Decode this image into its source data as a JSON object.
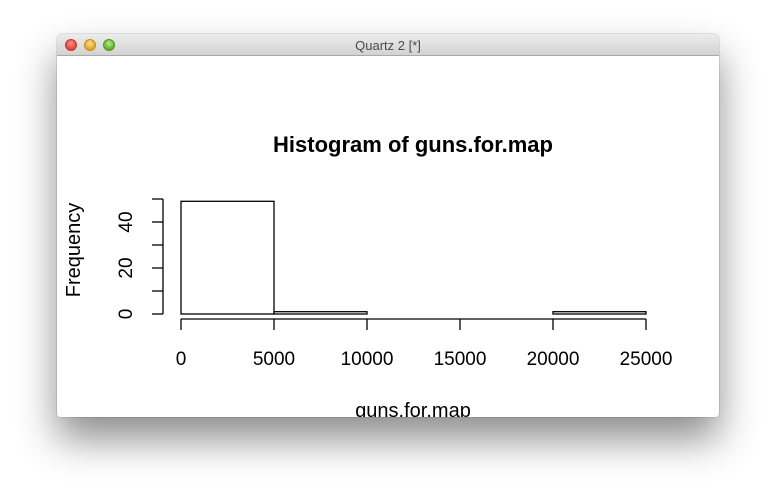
{
  "window": {
    "title": "Quartz 2 [*]"
  },
  "chart_data": {
    "type": "bar",
    "title": "Histogram of guns.for.map",
    "xlabel": "guns.for.map",
    "ylabel": "Frequency",
    "bins": [
      {
        "start": 0,
        "end": 5000,
        "count": 49
      },
      {
        "start": 5000,
        "end": 10000,
        "count": 1
      },
      {
        "start": 10000,
        "end": 15000,
        "count": 0
      },
      {
        "start": 15000,
        "end": 20000,
        "count": 0
      },
      {
        "start": 20000,
        "end": 25000,
        "count": 1
      }
    ],
    "xlim": [
      0,
      25000
    ],
    "ylim": [
      0,
      50
    ],
    "xticks": [
      0,
      5000,
      10000,
      15000,
      20000,
      25000
    ],
    "yticks": [
      0,
      20,
      40
    ],
    "grid": false
  }
}
